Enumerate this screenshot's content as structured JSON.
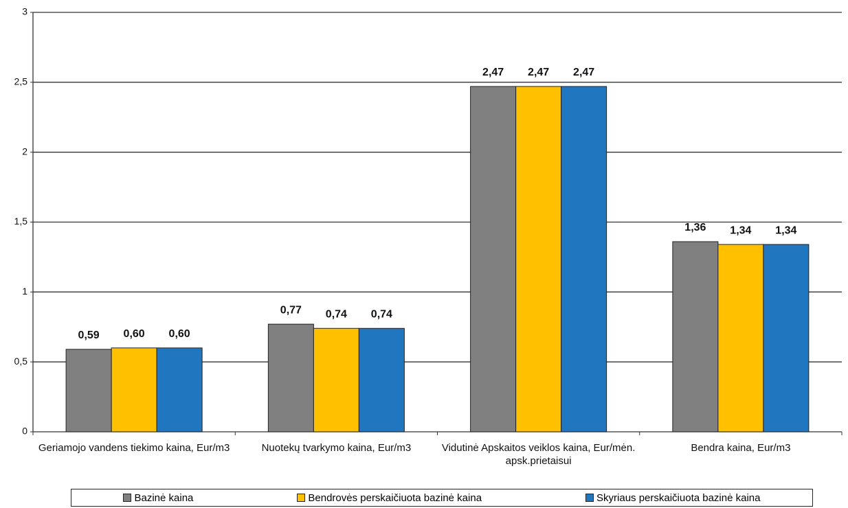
{
  "chart_data": {
    "type": "bar",
    "categories": [
      "Geriamojo vandens tiekimo kaina, Eur/m3",
      "Nuotekų tvarkymo kaina, Eur/m3",
      "Vidutinė Apskaitos veiklos kaina, Eur/mėn. apsk.prietaisui",
      "Bendra kaina, Eur/m3"
    ],
    "series": [
      {
        "name": "Bazinė kaina",
        "color": "#808080",
        "values": [
          0.59,
          0.77,
          2.47,
          1.36
        ],
        "value_labels": [
          "0,59",
          "0,77",
          "2,47",
          "1,36"
        ]
      },
      {
        "name": "Bendrovės perskaičiuota bazinė kaina",
        "color": "#ffc000",
        "values": [
          0.6,
          0.74,
          2.47,
          1.34
        ],
        "value_labels": [
          "0,60",
          "0,74",
          "2,47",
          "1,34"
        ]
      },
      {
        "name": "Skyriaus perskaičiuota bazinė kaina",
        "color": "#2176c0",
        "values": [
          0.6,
          0.74,
          2.47,
          1.34
        ],
        "value_labels": [
          "0,60",
          "0,74",
          "2,47",
          "1,34"
        ]
      }
    ],
    "ylim": [
      0,
      3
    ],
    "yticks": [
      0,
      {
        "value": 0.5,
        "label": "0,5"
      },
      1,
      {
        "value": 1.5,
        "label": "1,5"
      },
      2,
      {
        "value": 2.5,
        "label": "2,5"
      },
      3
    ],
    "grid": true,
    "legend": "bottom"
  }
}
